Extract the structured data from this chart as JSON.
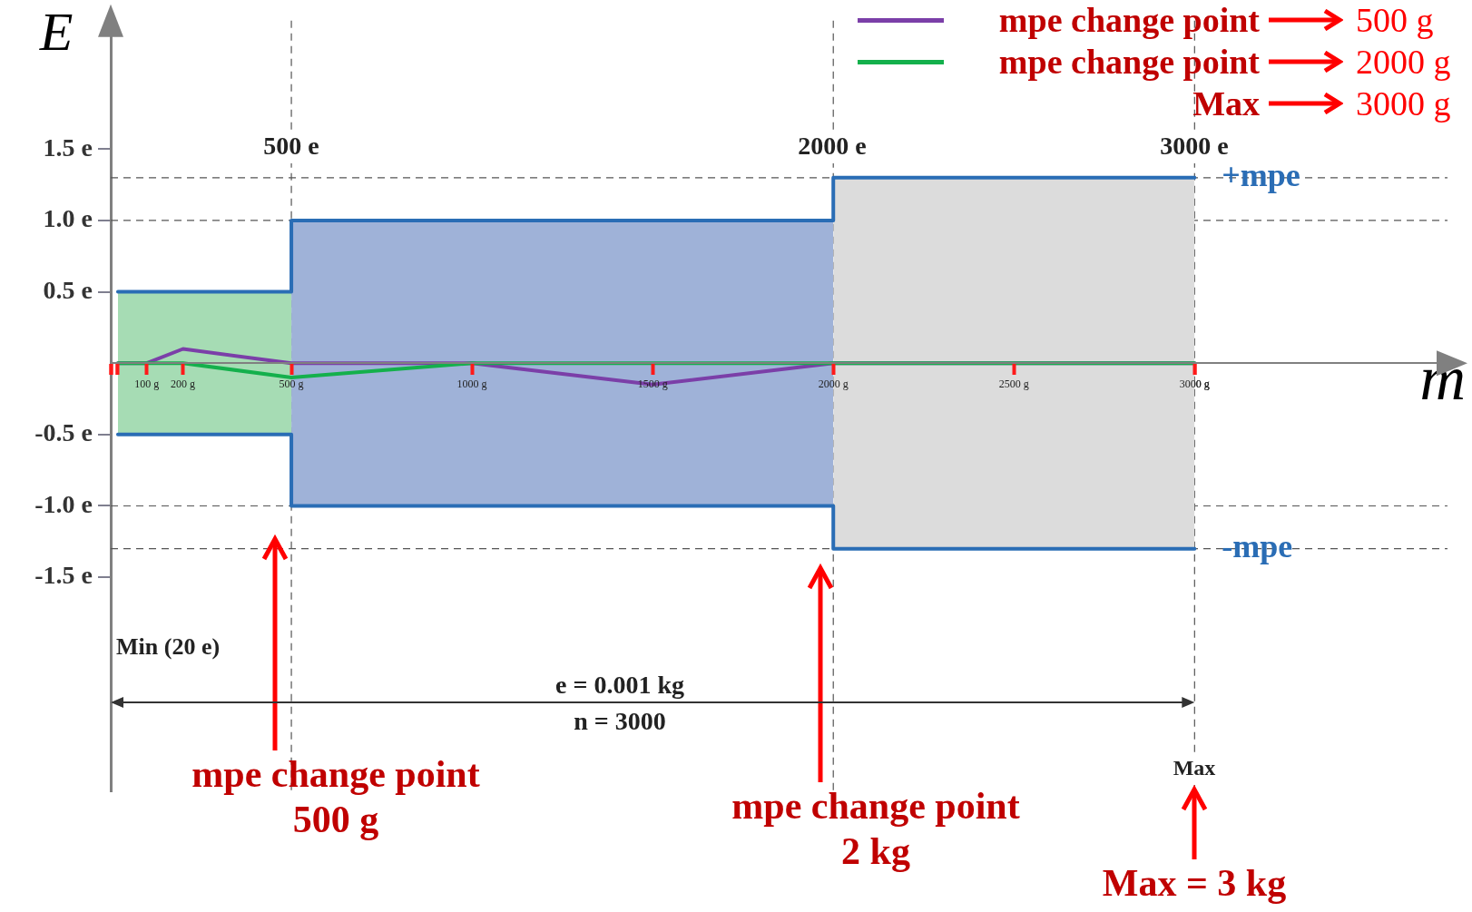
{
  "chart_data": {
    "type": "line",
    "ylabel": "E",
    "xlabel": "m",
    "xlim": [
      0,
      3700
    ],
    "ylim": [
      -3.0,
      2.4
    ],
    "xticks": [
      {
        "value": 0,
        "label": null
      },
      {
        "value": 20,
        "label": null
      },
      {
        "value": 100,
        "label": "100 g"
      },
      {
        "value": 200,
        "label": "200 g"
      },
      {
        "value": 500,
        "label": "500 g"
      },
      {
        "value": 1000,
        "label": "1000 g"
      },
      {
        "value": 1500,
        "label": "1500 g"
      },
      {
        "value": 2000,
        "label": "2000 g"
      },
      {
        "value": 2500,
        "label": "2500 g"
      },
      {
        "value": 3000,
        "label": "3000 g"
      }
    ],
    "yticks": [
      {
        "value": 1.5,
        "label": "1.5 e"
      },
      {
        "value": 1.0,
        "label": "1.0 e"
      },
      {
        "value": 0.5,
        "label": "0.5 e"
      },
      {
        "value": -0.5,
        "label": "-0.5 e"
      },
      {
        "value": -1.0,
        "label": "-1.0 e"
      },
      {
        "value": -1.5,
        "label": "-1.5 e"
      }
    ],
    "legend": "top right",
    "marker": "none",
    "line_style": "solid",
    "series": [
      {
        "type": "area",
        "color": "#a6dcb4",
        "x": [
          20,
          500
        ],
        "values": [
          0.5,
          0.5
        ]
      },
      {
        "type": "area",
        "color": "#a6dcb4",
        "x": [
          20,
          500
        ],
        "values": [
          -0.5,
          -0.5
        ]
      },
      {
        "type": "area",
        "color": "#9fb2d8",
        "x": [
          500,
          2000
        ],
        "values": [
          1.0,
          1.0
        ]
      },
      {
        "type": "area",
        "color": "#9fb2d8",
        "x": [
          500,
          2000
        ],
        "values": [
          -1.0,
          -1.0
        ]
      },
      {
        "type": "area",
        "color": "#dcdcdc",
        "x": [
          2000,
          3000
        ],
        "values": [
          1.3,
          1.3
        ]
      },
      {
        "type": "area",
        "color": "#dcdcdc",
        "x": [
          2000,
          3000
        ],
        "values": [
          -1.3,
          -1.3
        ]
      },
      {
        "type": "step",
        "name": "+mpe",
        "color": "#2a6db5",
        "x": [
          20,
          500,
          2000,
          3000
        ],
        "values": [
          0.5,
          1.0,
          1.3,
          1.3
        ]
      },
      {
        "type": "step",
        "name": "-mpe",
        "color": "#2a6db5",
        "x": [
          20,
          500,
          2000,
          3000
        ],
        "values": [
          -0.5,
          -1.0,
          -1.3,
          -1.3
        ]
      },
      {
        "type": "line",
        "name": "mpe change point",
        "color": "#7b3fa8",
        "x": [
          20,
          100,
          200,
          500,
          1000,
          1500,
          2000,
          2500,
          3000
        ],
        "values": [
          0,
          0,
          0.1,
          0,
          0,
          -0.15,
          0,
          0,
          0
        ]
      },
      {
        "type": "line",
        "name": "mpe change point",
        "color": "#14b04c",
        "x": [
          20,
          100,
          200,
          500,
          1000,
          1500,
          2000,
          2500,
          3000
        ],
        "values": [
          0,
          0,
          0,
          -0.1,
          0,
          0,
          0,
          0,
          0
        ]
      }
    ],
    "ref_lines": [
      {
        "axis": "y",
        "value": 1.3,
        "line_style": "dashed"
      },
      {
        "axis": "y",
        "value": -1.3,
        "line_style": "dashed"
      },
      {
        "axis": "y",
        "value": 1.0,
        "line_style": "dashed"
      },
      {
        "axis": "y",
        "value": -1.0,
        "line_style": "dashed"
      },
      {
        "axis": "x",
        "value": 500,
        "line_style": "dashed"
      },
      {
        "axis": "x",
        "value": 2000,
        "line_style": "dashed"
      },
      {
        "axis": "x",
        "value": 3000,
        "line_style": "dashed"
      }
    ],
    "annotations": [
      "500 g",
      "2000 g",
      "Max",
      "3000 g",
      "500 e",
      "2000 e",
      "3000 e",
      "Min (20 e)",
      "e = 0.001 kg",
      "n = 3000",
      "Max",
      "mpe change point\n500 g",
      "mpe change point\n2 kg",
      "Max = 3 kg"
    ]
  }
}
